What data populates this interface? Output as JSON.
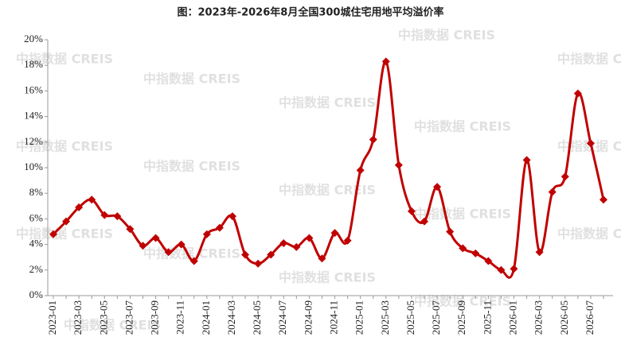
{
  "chart_data": {
    "type": "line",
    "title": "图：2023年-2026年8月全国300城住宅用地平均溢价率",
    "watermark": "中指数据 CREIS",
    "categories": [
      "2023-01",
      null,
      "2023-03",
      null,
      "2023-05",
      null,
      "2023-07",
      null,
      "2023-09",
      null,
      "2023-11",
      null,
      "2024-01",
      null,
      "2024-03",
      null,
      "2024-05",
      null,
      "2024-07",
      null,
      "2024-09",
      null,
      "2024-11",
      null,
      "2025-01",
      null,
      "2025-03",
      null,
      "2025-05",
      null,
      "2025-07",
      null,
      "2025-09",
      null,
      "2025-11",
      null,
      "2026-01",
      null,
      "2026-03",
      null,
      "2026-05",
      null,
      "2026-07",
      null
    ],
    "series": [
      {
        "name": "平均溢价率",
        "color": "#c00000",
        "values": [
          4.8,
          5.8,
          6.9,
          7.5,
          6.3,
          6.2,
          5.2,
          3.9,
          4.5,
          3.4,
          4.0,
          2.7,
          4.8,
          5.3,
          6.2,
          3.2,
          2.5,
          3.2,
          4.1,
          3.8,
          4.5,
          2.9,
          4.9,
          4.3,
          9.8,
          12.2,
          18.3,
          10.2,
          6.6,
          5.8,
          8.5,
          5.0,
          3.7,
          3.3,
          2.7,
          2.0,
          2.1,
          10.6,
          3.4,
          8.1,
          9.3,
          15.8,
          11.9,
          7.5
        ]
      }
    ],
    "ylim": [
      0,
      20
    ],
    "yticks": [
      {
        "value": 0,
        "label": "0%"
      },
      {
        "value": 2,
        "label": "2%"
      },
      {
        "value": 4,
        "label": "4%"
      },
      {
        "value": 6,
        "label": "6%"
      },
      {
        "value": 8,
        "label": "8%"
      },
      {
        "value": 10,
        "label": "10%"
      },
      {
        "value": 12,
        "label": "12%"
      },
      {
        "value": 14,
        "label": "14%"
      },
      {
        "value": 16,
        "label": "16%"
      },
      {
        "value": 18,
        "label": "18%"
      },
      {
        "value": 20,
        "label": "20%"
      }
    ]
  }
}
